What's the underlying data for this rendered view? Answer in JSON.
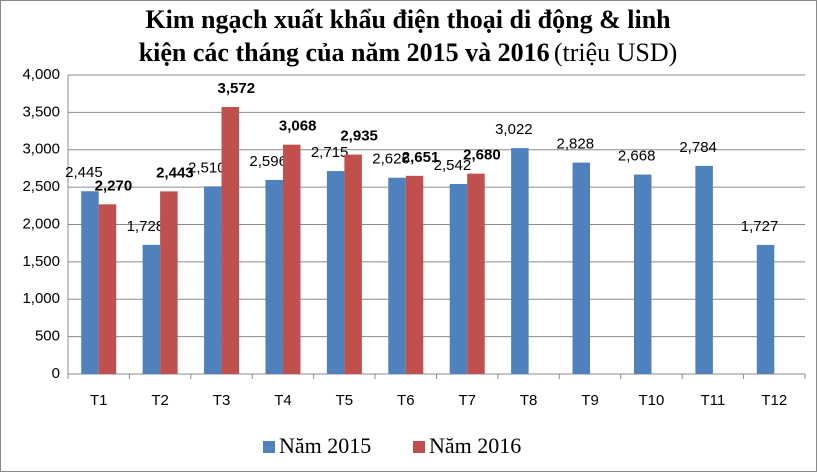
{
  "chart_data": {
    "type": "bar",
    "title": [
      "Kim ngạch xuất khẩu điện thoại di động & linh",
      "kiện các tháng của năm 2015 và 2016"
    ],
    "subtitle": "(triệu USD)",
    "categories": [
      "T1",
      "T2",
      "T3",
      "T4",
      "T5",
      "T6",
      "T7",
      "T8",
      "T9",
      "T10",
      "T11",
      "T12"
    ],
    "series": [
      {
        "name": "Năm 2015",
        "color": "#4f81bd",
        "values": [
          2445,
          1728,
          2510,
          2596,
          2715,
          2626,
          2542,
          3022,
          2828,
          2668,
          2784,
          1727
        ],
        "value_labels": [
          "2,445",
          "1,728",
          "2,510",
          "2,596",
          "2,715",
          "2,626",
          "2,542",
          "3,022",
          "2,828",
          "2,668",
          "2,784",
          "1,727"
        ]
      },
      {
        "name": "Năm 2016",
        "color": "#c0504d",
        "values": [
          2270,
          2443,
          3572,
          3068,
          2935,
          2651,
          2680,
          null,
          null,
          null,
          null,
          null
        ],
        "value_labels": [
          "2,270",
          "2,443",
          "3,572",
          "3,068",
          "2,935",
          "2,651",
          "2,680",
          null,
          null,
          null,
          null,
          null
        ]
      }
    ],
    "ylim": [
      0,
      4000
    ],
    "yticks": [
      0,
      500,
      {
        "value": 1000,
        "label": "1,000"
      },
      {
        "value": 1500,
        "label": "1,500"
      },
      {
        "value": 2000,
        "label": "2,000"
      },
      {
        "value": 2500,
        "label": "2,500"
      },
      {
        "value": 3000,
        "label": "3,000"
      },
      {
        "value": 3500,
        "label": "3,500"
      },
      {
        "value": 4000,
        "label": "4,000"
      }
    ],
    "grid": true,
    "legend": "bottom"
  }
}
